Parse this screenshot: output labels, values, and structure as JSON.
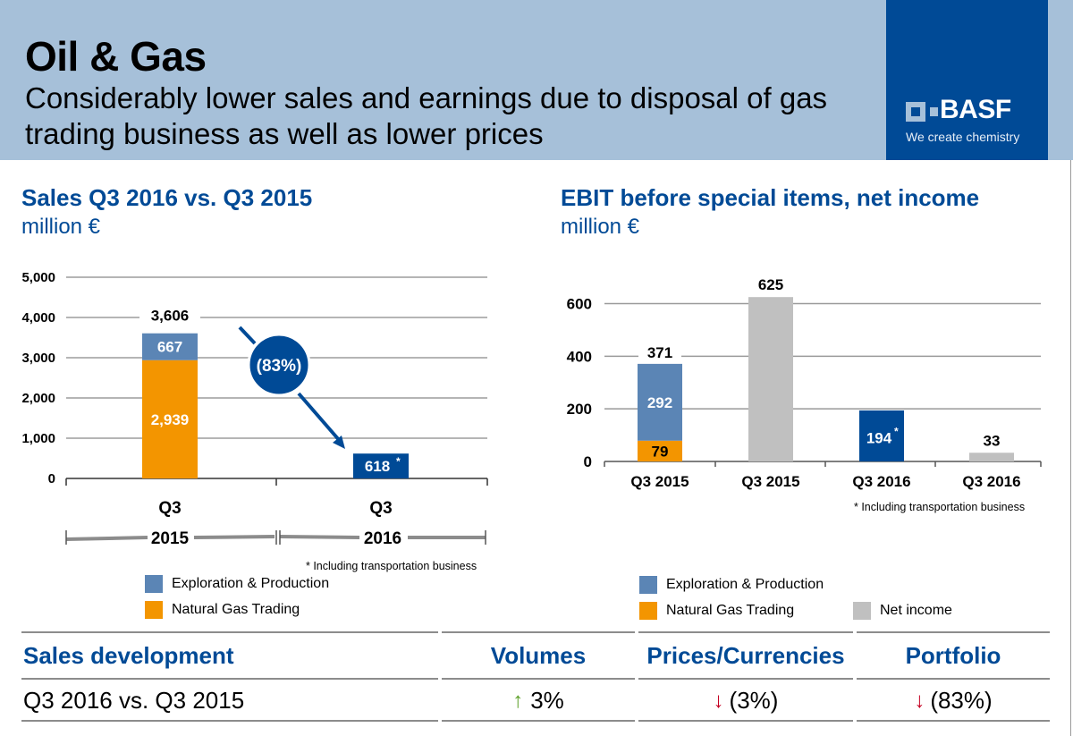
{
  "header": {
    "title": "Oil & Gas",
    "subtitle": "Considerably lower sales and earnings due to disposal of gas trading business as well as lower prices",
    "logo_brand": "BASF",
    "logo_tagline": "We create chemistry"
  },
  "colors": {
    "brand_blue": "#004a96",
    "header_bg": "#a6c0d9",
    "exploration": "#5b85b5",
    "gas_trading": "#f39500",
    "net_income": "#c0c0c0",
    "transport": "#004a96"
  },
  "sales_section": {
    "title": "Sales Q3 2016 vs. Q3 2015",
    "unit": "million €"
  },
  "ebit_section": {
    "title": "EBIT before special items, net income",
    "unit": "million €"
  },
  "chart_data": [
    {
      "type": "bar",
      "stacked": true,
      "title": "Sales Q3 2016 vs. Q3 2015",
      "ylabel": "million €",
      "ylim": [
        0,
        5000
      ],
      "yticks": [
        "0",
        "1,000",
        "2,000",
        "3,000",
        "4,000",
        "5,000"
      ],
      "yticks_values": [
        0,
        1000,
        2000,
        3000,
        4000,
        5000
      ],
      "grid": true,
      "categories": [
        "Q3",
        "Q3"
      ],
      "category_years": [
        "2015",
        "2016"
      ],
      "series": [
        {
          "name": "Natural Gas Trading",
          "values": [
            2939,
            0
          ],
          "labels": [
            "2,939",
            ""
          ]
        },
        {
          "name": "Exploration & Production",
          "values": [
            667,
            0
          ],
          "labels": [
            "667",
            ""
          ]
        },
        {
          "name": "Exploration & Production incl. transportation",
          "values": [
            0,
            618
          ],
          "labels": [
            "",
            "618"
          ]
        }
      ],
      "totals": [
        "3,606",
        ""
      ],
      "annotation": "(83%)",
      "footnote": "* Including transportation business",
      "legend": [
        "Exploration & Production",
        "Natural Gas Trading"
      ],
      "legend_position": "bottom"
    },
    {
      "type": "bar",
      "stacked": true,
      "title": "EBIT before special items, net income",
      "ylabel": "million €",
      "ylim": [
        0,
        680
      ],
      "yticks": [
        "0",
        "200",
        "400",
        "600"
      ],
      "yticks_values": [
        0,
        200,
        400,
        600
      ],
      "grid": true,
      "categories": [
        "Q3 2015",
        "Q3 2015",
        "Q3 2016",
        "Q3 2016"
      ],
      "series": [
        {
          "name": "Natural Gas Trading",
          "values": [
            79,
            0,
            0,
            0
          ],
          "labels": [
            "79",
            "",
            "",
            ""
          ]
        },
        {
          "name": "Exploration & Production",
          "values": [
            292,
            0,
            0,
            0
          ],
          "labels": [
            "292",
            "",
            "",
            ""
          ]
        },
        {
          "name": "Net income",
          "values": [
            0,
            625,
            0,
            33
          ],
          "labels": [
            "",
            "625",
            "",
            "33"
          ]
        },
        {
          "name": "Exploration & Production incl. transportation",
          "values": [
            0,
            0,
            194,
            0
          ],
          "labels": [
            "",
            "",
            "194",
            ""
          ]
        }
      ],
      "totals": [
        "371",
        "",
        "",
        ""
      ],
      "footnote": "* Including transportation business",
      "legend": [
        "Exploration & Production",
        "Natural Gas Trading",
        "Net income"
      ],
      "legend_position": "bottom"
    }
  ],
  "sales_table": {
    "headers": [
      "Sales development",
      "Volumes",
      "Prices/Currencies",
      "Portfolio"
    ],
    "row_label": "Q3 2016 vs. Q3 2015",
    "cells": [
      {
        "direction": "up",
        "value": "3%"
      },
      {
        "direction": "down",
        "value": "(3%)"
      },
      {
        "direction": "down",
        "value": "(83%)"
      }
    ]
  },
  "icons": {
    "up": "arrow-up-icon",
    "down": "arrow-down-icon"
  }
}
